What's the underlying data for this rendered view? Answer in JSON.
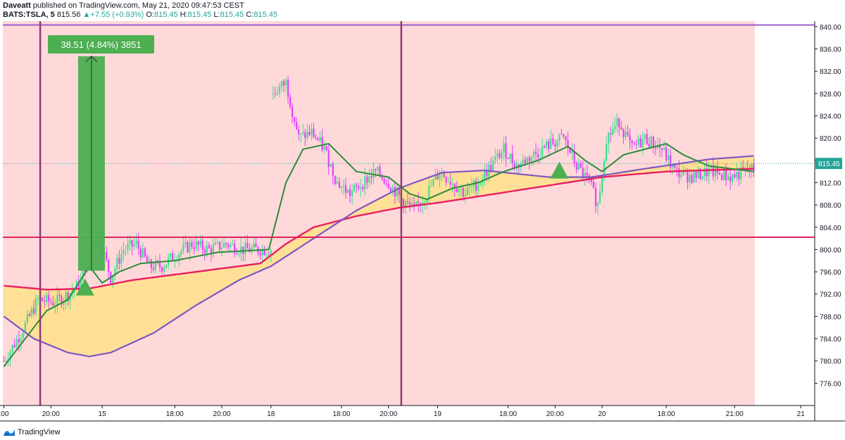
{
  "header": {
    "publisher": "Daveatt",
    "published_text": " published on TradingView.com, May 21, 2020 09:47:53 CEST",
    "symbol": "BATS:TSLA, 5",
    "last": "815.56",
    "change": "+7.55 (+0.93%)",
    "o_label": "O:",
    "o_value": "815.45",
    "h_label": "H:",
    "h_value": "815.45",
    "l_label": "L:",
    "l_value": "815.45",
    "c_label": "C:",
    "c_value": "815.45"
  },
  "footer": {
    "brand": "TradingView",
    "logo_icon": "tradingview-logo-icon"
  },
  "measure": {
    "label": "38.51 (4.84%) 3851",
    "from_price": 796.2,
    "to_price": 834.7,
    "x_index": 41
  },
  "colors": {
    "background_zone": "#ffd9d9",
    "bull_candle": "#3de08a",
    "bear_candle": "#e040fb",
    "fast_ma": "#2e8b3e",
    "slow_ma": "#7e57c2",
    "red_ma": "#e91e63",
    "cloud_fill": "#ffe08a",
    "vline": "#8e3b7a",
    "hline_top": "#9c5ccf",
    "hline_red": "#e0245e",
    "last_price_bg": "#26a69a",
    "measure_box": "#4caf50"
  },
  "chart_data": {
    "type": "candlestick",
    "symbol": "BATS:TSLA",
    "timeframe": "5",
    "last_price_label": "815.45",
    "y_axis": {
      "min": 772,
      "max": 841,
      "ticks": [
        "840.00",
        "836.00",
        "832.00",
        "828.00",
        "824.00",
        "820.00",
        "816.00",
        "812.00",
        "808.00",
        "804.00",
        "800.00",
        "796.00",
        "792.00",
        "788.00",
        "784.00",
        "780.00",
        "776.00"
      ]
    },
    "x_ticks": [
      {
        "label": ":00",
        "i": 0
      },
      {
        "label": "20:00",
        "i": 22
      },
      {
        "label": "15",
        "i": 46
      },
      {
        "label": "18:00",
        "i": 80
      },
      {
        "label": "20:00",
        "i": 102
      },
      {
        "label": "18",
        "i": 125
      },
      {
        "label": "18:00",
        "i": 158
      },
      {
        "label": "20:00",
        "i": 180
      },
      {
        "label": "19",
        "i": 203
      },
      {
        "label": "18:00",
        "i": 236
      },
      {
        "label": "20:00",
        "i": 258
      },
      {
        "label": "20",
        "i": 280
      },
      {
        "label": "18:00",
        "i": 310
      },
      {
        "label": "21:00",
        "i": 342
      },
      {
        "label": "21",
        "i": 373
      }
    ],
    "horizontal_lines": [
      {
        "price": 840.3,
        "role": "top"
      },
      {
        "price": 802.2,
        "role": "red"
      }
    ],
    "vertical_lines": [
      {
        "i": 17
      },
      {
        "i": 186
      }
    ],
    "triangles": [
      {
        "i": 38,
        "price": 792.5
      },
      {
        "i": 260,
        "price": 813.5
      }
    ],
    "bars": 352,
    "keypoints": [
      {
        "i": 0,
        "p": 780
      },
      {
        "i": 8,
        "p": 785
      },
      {
        "i": 16,
        "p": 791
      },
      {
        "i": 24,
        "p": 790.5
      },
      {
        "i": 30,
        "p": 792
      },
      {
        "i": 36,
        "p": 794
      },
      {
        "i": 40,
        "p": 800
      },
      {
        "i": 44,
        "p": 803
      },
      {
        "i": 50,
        "p": 795
      },
      {
        "i": 56,
        "p": 800
      },
      {
        "i": 62,
        "p": 801
      },
      {
        "i": 68,
        "p": 797
      },
      {
        "i": 74,
        "p": 797
      },
      {
        "i": 80,
        "p": 799
      },
      {
        "i": 88,
        "p": 801
      },
      {
        "i": 96,
        "p": 800
      },
      {
        "i": 104,
        "p": 801
      },
      {
        "i": 112,
        "p": 800
      },
      {
        "i": 120,
        "p": 800
      },
      {
        "i": 125,
        "p": 800
      },
      {
        "i": 126,
        "p": 828
      },
      {
        "i": 132,
        "p": 830
      },
      {
        "i": 138,
        "p": 820
      },
      {
        "i": 144,
        "p": 821
      },
      {
        "i": 150,
        "p": 818
      },
      {
        "i": 156,
        "p": 812
      },
      {
        "i": 162,
        "p": 810
      },
      {
        "i": 168,
        "p": 812
      },
      {
        "i": 174,
        "p": 814
      },
      {
        "i": 180,
        "p": 812
      },
      {
        "i": 186,
        "p": 809
      },
      {
        "i": 192,
        "p": 807
      },
      {
        "i": 198,
        "p": 810
      },
      {
        "i": 204,
        "p": 814
      },
      {
        "i": 210,
        "p": 812
      },
      {
        "i": 216,
        "p": 810
      },
      {
        "i": 222,
        "p": 812
      },
      {
        "i": 228,
        "p": 815
      },
      {
        "i": 234,
        "p": 818
      },
      {
        "i": 240,
        "p": 815
      },
      {
        "i": 248,
        "p": 817
      },
      {
        "i": 256,
        "p": 819
      },
      {
        "i": 262,
        "p": 820
      },
      {
        "i": 268,
        "p": 815
      },
      {
        "i": 274,
        "p": 812
      },
      {
        "i": 278,
        "p": 808
      },
      {
        "i": 282,
        "p": 820
      },
      {
        "i": 288,
        "p": 823
      },
      {
        "i": 294,
        "p": 818
      },
      {
        "i": 300,
        "p": 820
      },
      {
        "i": 308,
        "p": 818
      },
      {
        "i": 314,
        "p": 814
      },
      {
        "i": 322,
        "p": 813
      },
      {
        "i": 330,
        "p": 814
      },
      {
        "i": 340,
        "p": 813
      },
      {
        "i": 351,
        "p": 814.5
      }
    ],
    "fast_ma": [
      {
        "i": 0,
        "p": 779
      },
      {
        "i": 10,
        "p": 784
      },
      {
        "i": 20,
        "p": 789
      },
      {
        "i": 30,
        "p": 791
      },
      {
        "i": 40,
        "p": 797
      },
      {
        "i": 46,
        "p": 794
      },
      {
        "i": 54,
        "p": 796
      },
      {
        "i": 64,
        "p": 797.5
      },
      {
        "i": 80,
        "p": 798
      },
      {
        "i": 100,
        "p": 799.5
      },
      {
        "i": 124,
        "p": 800
      },
      {
        "i": 132,
        "p": 812
      },
      {
        "i": 140,
        "p": 818
      },
      {
        "i": 152,
        "p": 819
      },
      {
        "i": 165,
        "p": 814
      },
      {
        "i": 180,
        "p": 813
      },
      {
        "i": 190,
        "p": 810
      },
      {
        "i": 198,
        "p": 809
      },
      {
        "i": 210,
        "p": 811
      },
      {
        "i": 222,
        "p": 812
      },
      {
        "i": 234,
        "p": 814
      },
      {
        "i": 250,
        "p": 816
      },
      {
        "i": 264,
        "p": 818.5
      },
      {
        "i": 272,
        "p": 816
      },
      {
        "i": 280,
        "p": 814
      },
      {
        "i": 290,
        "p": 817
      },
      {
        "i": 300,
        "p": 818
      },
      {
        "i": 310,
        "p": 819
      },
      {
        "i": 318,
        "p": 817
      },
      {
        "i": 330,
        "p": 815
      },
      {
        "i": 351,
        "p": 814
      }
    ],
    "slow_ma": [
      {
        "i": 0,
        "p": 788
      },
      {
        "i": 14,
        "p": 784
      },
      {
        "i": 30,
        "p": 781.5
      },
      {
        "i": 40,
        "p": 780.8
      },
      {
        "i": 50,
        "p": 781.5
      },
      {
        "i": 70,
        "p": 785
      },
      {
        "i": 90,
        "p": 790
      },
      {
        "i": 110,
        "p": 794.5
      },
      {
        "i": 125,
        "p": 797
      },
      {
        "i": 145,
        "p": 802
      },
      {
        "i": 165,
        "p": 807
      },
      {
        "i": 185,
        "p": 811
      },
      {
        "i": 205,
        "p": 813.8
      },
      {
        "i": 225,
        "p": 814.2
      },
      {
        "i": 255,
        "p": 813
      },
      {
        "i": 275,
        "p": 813
      },
      {
        "i": 300,
        "p": 814.5
      },
      {
        "i": 330,
        "p": 816.2
      },
      {
        "i": 351,
        "p": 816.8
      }
    ],
    "red_ma": [
      {
        "i": 0,
        "p": 793.5
      },
      {
        "i": 20,
        "p": 792.8
      },
      {
        "i": 40,
        "p": 793
      },
      {
        "i": 60,
        "p": 794.5
      },
      {
        "i": 90,
        "p": 796
      },
      {
        "i": 120,
        "p": 797.5
      },
      {
        "i": 132,
        "p": 801
      },
      {
        "i": 145,
        "p": 804
      },
      {
        "i": 165,
        "p": 806
      },
      {
        "i": 185,
        "p": 807.5
      },
      {
        "i": 205,
        "p": 808.5
      },
      {
        "i": 230,
        "p": 810
      },
      {
        "i": 255,
        "p": 811.5
      },
      {
        "i": 280,
        "p": 813
      },
      {
        "i": 310,
        "p": 814
      },
      {
        "i": 351,
        "p": 814.5
      }
    ]
  }
}
